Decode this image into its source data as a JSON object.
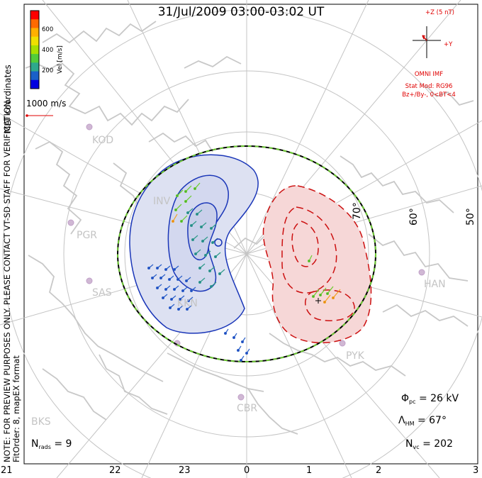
{
  "title": "31/Jul/2009 03:00-03:02 UT",
  "side_text": {
    "coords": "MLT coordinates",
    "preview_note": "NOTE: FOR PREVIEW PURPOSES ONLY. PLEASE CONTACT VT-SD STAFF FOR VERIFICATION.",
    "fit_info": "FitOrder: 8, mapEX format"
  },
  "colorbar": {
    "label": "Vel [m/s]",
    "ticks": [
      "600",
      "400",
      "200"
    ],
    "colors": [
      "#ff0000",
      "#ff6a00",
      "#ffb000",
      "#f0e000",
      "#a8e000",
      "#52cc3a",
      "#2ea88c",
      "#1a60c8",
      "#0000e0"
    ]
  },
  "scale_vector": {
    "label": "1000 m/s"
  },
  "imf": {
    "z_label": "+Z (5 nT)",
    "y_label": "+Y",
    "source": "OMNI IMF",
    "model": "Stat Mod: RG96",
    "condition": "Bz+/By-, 0<BT<4"
  },
  "radars": [
    "KOD",
    "INV",
    "PGR",
    "SAS",
    "KKN",
    "CBR",
    "HAN",
    "PYK",
    "BKS"
  ],
  "lat_labels": [
    "70°",
    "60°",
    "50°"
  ],
  "stats": {
    "phi_symbol": "Φ",
    "phi_sub": "pc",
    "phi_value": "= 26 kV",
    "lambda_symbol": "Λ",
    "lambda_sub": "HM",
    "lambda_value": "= 67°",
    "nvc_symbol": "N",
    "nvc_sub": "vc",
    "nvc_value": "= 202",
    "nrads_symbol": "N",
    "nrads_sub": "rads",
    "nrads_value": "= 9"
  },
  "mlt_axis": [
    "21",
    "22",
    "23",
    "0",
    "1",
    "2",
    "3"
  ],
  "colors": {
    "positive_cell": "#cc0000",
    "negative_cell": "#1530b0",
    "hmb": "#000000",
    "coast": "#c8c8c8",
    "grid": "#c0c0c0"
  }
}
